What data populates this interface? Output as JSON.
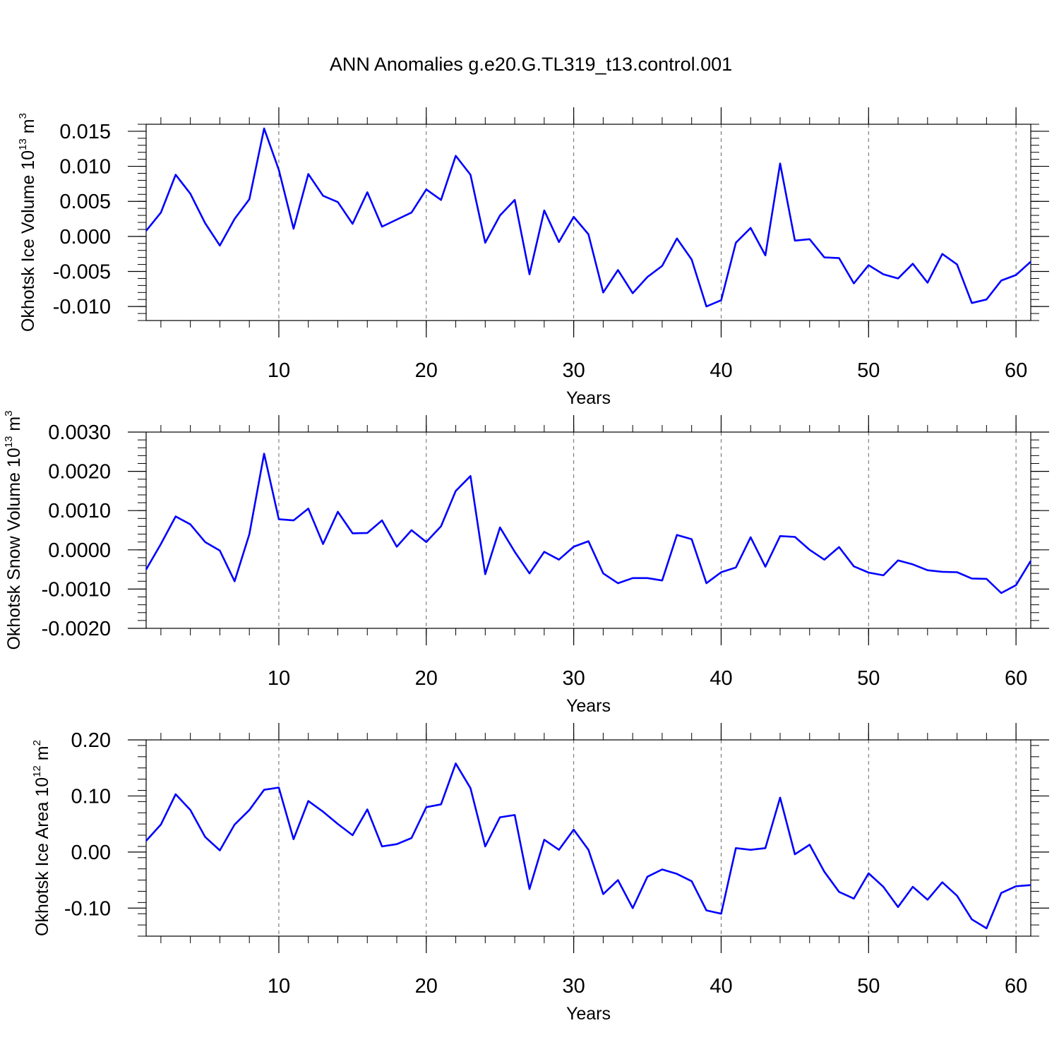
{
  "title": "ANN Anomalies g.e20.G.TL319_t13.control.001",
  "colors": {
    "line": "#0000ff",
    "axis": "#000000",
    "grid": "#666666"
  },
  "chart_data": [
    {
      "type": "line",
      "ylabel": {
        "text": "Okhotsk Ice Volume 10",
        "exp": "13",
        "unit": " m",
        "unit_exp": "3"
      },
      "xlabel": "Years",
      "xlim": [
        1,
        61
      ],
      "ylim": [
        -0.012,
        0.016
      ],
      "xticks": [
        10,
        20,
        30,
        40,
        50,
        60
      ],
      "yticks": [
        0.015,
        0.01,
        0.005,
        0.0,
        -0.005,
        -0.01
      ],
      "ytick_labels": [
        "0.015",
        "0.010",
        "0.005",
        "0.000",
        "-0.005",
        "-0.010"
      ],
      "x": [
        1,
        2,
        3,
        4,
        5,
        6,
        7,
        8,
        9,
        10,
        11,
        12,
        13,
        14,
        15,
        16,
        17,
        18,
        19,
        20,
        21,
        22,
        23,
        24,
        25,
        26,
        27,
        28,
        29,
        30,
        31,
        32,
        33,
        34,
        35,
        36,
        37,
        38,
        39,
        40,
        41,
        42,
        43,
        44,
        45,
        46,
        47,
        48,
        49,
        50,
        51,
        52,
        53,
        54,
        55,
        56,
        57,
        58,
        59,
        60,
        61
      ],
      "series": [
        {
          "values": [
            0.0008,
            0.0034,
            0.0088,
            0.0061,
            0.0019,
            -0.0013,
            0.0025,
            0.0053,
            0.0154,
            0.0095,
            0.0011,
            0.0089,
            0.0058,
            0.0049,
            0.0018,
            0.0063,
            0.0014,
            0.0024,
            0.0034,
            0.0067,
            0.0052,
            0.0115,
            0.0088,
            -0.0009,
            0.003,
            0.0052,
            -0.0054,
            0.0037,
            -0.0008,
            0.0028,
            0.0003,
            -0.008,
            -0.0048,
            -0.0081,
            -0.0058,
            -0.0042,
            -0.0003,
            -0.0033,
            -0.01,
            -0.0091,
            -0.0009,
            0.0012,
            -0.0027,
            0.0104,
            -0.0006,
            -0.0004,
            -0.003,
            -0.0031,
            -0.0067,
            -0.0041,
            -0.0054,
            -0.006,
            -0.0039,
            -0.0066,
            -0.0025,
            -0.004,
            -0.0095,
            -0.009,
            -0.0063,
            -0.0055,
            -0.0036
          ]
        }
      ]
    },
    {
      "type": "line",
      "ylabel": {
        "text": "Okhotsk Snow Volume 10",
        "exp": "13",
        "unit": " m",
        "unit_exp": "3"
      },
      "xlabel": "Years",
      "xlim": [
        1,
        61
      ],
      "ylim": [
        -0.002,
        0.003
      ],
      "xticks": [
        10,
        20,
        30,
        40,
        50,
        60
      ],
      "yticks": [
        0.003,
        0.002,
        0.001,
        0.0,
        -0.001,
        -0.002
      ],
      "ytick_labels": [
        "0.0030",
        "0.0020",
        "0.0010",
        "0.0000",
        "-0.0010",
        "-0.0020"
      ],
      "x": [
        1,
        2,
        3,
        4,
        5,
        6,
        7,
        8,
        9,
        10,
        11,
        12,
        13,
        14,
        15,
        16,
        17,
        18,
        19,
        20,
        21,
        22,
        23,
        24,
        25,
        26,
        27,
        28,
        29,
        30,
        31,
        32,
        33,
        34,
        35,
        36,
        37,
        38,
        39,
        40,
        41,
        42,
        43,
        44,
        45,
        46,
        47,
        48,
        49,
        50,
        51,
        52,
        53,
        54,
        55,
        56,
        57,
        58,
        59,
        60,
        61
      ],
      "series": [
        {
          "values": [
            -0.0005,
            0.00015,
            0.00085,
            0.00065,
            0.0002,
            -2e-05,
            -0.0008,
            0.0004,
            0.00245,
            0.00078,
            0.00075,
            0.00105,
            0.00015,
            0.00097,
            0.00042,
            0.00043,
            0.00075,
            8e-05,
            0.0005,
            0.0002,
            0.0006,
            0.0015,
            0.00188,
            -0.00062,
            0.00057,
            -5e-05,
            -0.0006,
            -5e-05,
            -0.00025,
            8e-05,
            0.00022,
            -0.0006,
            -0.00085,
            -0.00072,
            -0.00072,
            -0.00078,
            0.00038,
            0.00027,
            -0.00085,
            -0.00057,
            -0.00045,
            0.00032,
            -0.00043,
            0.00035,
            0.00033,
            0.0,
            -0.00025,
            7e-05,
            -0.00042,
            -0.00058,
            -0.00065,
            -0.00027,
            -0.00037,
            -0.00052,
            -0.00056,
            -0.00057,
            -0.00073,
            -0.00074,
            -0.0011,
            -0.0009,
            -0.00028
          ]
        }
      ]
    },
    {
      "type": "line",
      "ylabel": {
        "text": "Okhotsk Ice Area 10",
        "exp": "12",
        "unit": " m",
        "unit_exp": "2"
      },
      "xlabel": "Years",
      "xlim": [
        1,
        61
      ],
      "ylim": [
        -0.15,
        0.2
      ],
      "xticks": [
        10,
        20,
        30,
        40,
        50,
        60
      ],
      "yticks": [
        0.2,
        0.1,
        0.0,
        -0.1
      ],
      "ytick_labels": [
        "0.20",
        "0.10",
        "0.00",
        "-0.10"
      ],
      "x": [
        1,
        2,
        3,
        4,
        5,
        6,
        7,
        8,
        9,
        10,
        11,
        12,
        13,
        14,
        15,
        16,
        17,
        18,
        19,
        20,
        21,
        22,
        23,
        24,
        25,
        26,
        27,
        28,
        29,
        30,
        31,
        32,
        33,
        34,
        35,
        36,
        37,
        38,
        39,
        40,
        41,
        42,
        43,
        44,
        45,
        46,
        47,
        48,
        49,
        50,
        51,
        52,
        53,
        54,
        55,
        56,
        57,
        58,
        59,
        60,
        61
      ],
      "series": [
        {
          "values": [
            0.02,
            0.049,
            0.103,
            0.075,
            0.027,
            0.003,
            0.049,
            0.075,
            0.111,
            0.115,
            0.023,
            0.091,
            0.072,
            0.05,
            0.03,
            0.076,
            0.01,
            0.014,
            0.025,
            0.08,
            0.085,
            0.158,
            0.114,
            0.01,
            0.062,
            0.066,
            -0.066,
            0.022,
            0.004,
            0.04,
            0.004,
            -0.075,
            -0.05,
            -0.1,
            -0.044,
            -0.031,
            -0.039,
            -0.052,
            -0.104,
            -0.11,
            0.007,
            0.004,
            0.007,
            0.097,
            -0.004,
            0.013,
            -0.035,
            -0.071,
            -0.083,
            -0.038,
            -0.062,
            -0.098,
            -0.062,
            -0.085,
            -0.054,
            -0.078,
            -0.12,
            -0.136,
            -0.073,
            -0.061,
            -0.059
          ]
        }
      ]
    }
  ]
}
